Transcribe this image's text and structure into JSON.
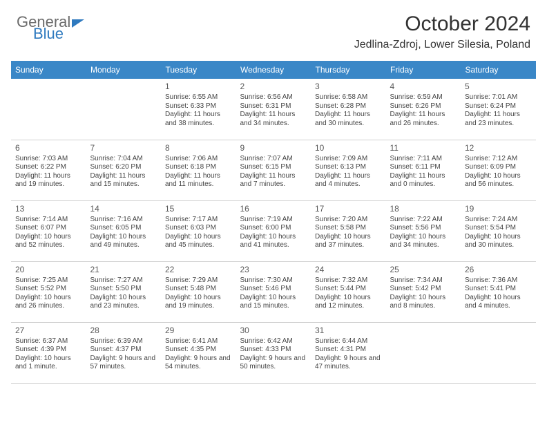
{
  "brand": {
    "word1": "General",
    "word2": "Blue",
    "word1_color": "#6b6b6b",
    "word2_color": "#2f7abf"
  },
  "title": "October 2024",
  "location": "Jedlina-Zdroj, Lower Silesia, Poland",
  "colors": {
    "header_bg": "#3a87c7",
    "header_text": "#ffffff",
    "row_divider": "#3a87c7",
    "cell_border": "#d0d0d0",
    "daynum_color": "#595959",
    "body_text": "#444444",
    "background": "#ffffff"
  },
  "day_headers": [
    "Sunday",
    "Monday",
    "Tuesday",
    "Wednesday",
    "Thursday",
    "Friday",
    "Saturday"
  ],
  "weeks": [
    [
      {
        "blank": true
      },
      {
        "blank": true
      },
      {
        "day": "1",
        "sunrise": "Sunrise: 6:55 AM",
        "sunset": "Sunset: 6:33 PM",
        "daylight": "Daylight: 11 hours and 38 minutes."
      },
      {
        "day": "2",
        "sunrise": "Sunrise: 6:56 AM",
        "sunset": "Sunset: 6:31 PM",
        "daylight": "Daylight: 11 hours and 34 minutes."
      },
      {
        "day": "3",
        "sunrise": "Sunrise: 6:58 AM",
        "sunset": "Sunset: 6:28 PM",
        "daylight": "Daylight: 11 hours and 30 minutes."
      },
      {
        "day": "4",
        "sunrise": "Sunrise: 6:59 AM",
        "sunset": "Sunset: 6:26 PM",
        "daylight": "Daylight: 11 hours and 26 minutes."
      },
      {
        "day": "5",
        "sunrise": "Sunrise: 7:01 AM",
        "sunset": "Sunset: 6:24 PM",
        "daylight": "Daylight: 11 hours and 23 minutes."
      }
    ],
    [
      {
        "day": "6",
        "sunrise": "Sunrise: 7:03 AM",
        "sunset": "Sunset: 6:22 PM",
        "daylight": "Daylight: 11 hours and 19 minutes."
      },
      {
        "day": "7",
        "sunrise": "Sunrise: 7:04 AM",
        "sunset": "Sunset: 6:20 PM",
        "daylight": "Daylight: 11 hours and 15 minutes."
      },
      {
        "day": "8",
        "sunrise": "Sunrise: 7:06 AM",
        "sunset": "Sunset: 6:18 PM",
        "daylight": "Daylight: 11 hours and 11 minutes."
      },
      {
        "day": "9",
        "sunrise": "Sunrise: 7:07 AM",
        "sunset": "Sunset: 6:15 PM",
        "daylight": "Daylight: 11 hours and 7 minutes."
      },
      {
        "day": "10",
        "sunrise": "Sunrise: 7:09 AM",
        "sunset": "Sunset: 6:13 PM",
        "daylight": "Daylight: 11 hours and 4 minutes."
      },
      {
        "day": "11",
        "sunrise": "Sunrise: 7:11 AM",
        "sunset": "Sunset: 6:11 PM",
        "daylight": "Daylight: 11 hours and 0 minutes."
      },
      {
        "day": "12",
        "sunrise": "Sunrise: 7:12 AM",
        "sunset": "Sunset: 6:09 PM",
        "daylight": "Daylight: 10 hours and 56 minutes."
      }
    ],
    [
      {
        "day": "13",
        "sunrise": "Sunrise: 7:14 AM",
        "sunset": "Sunset: 6:07 PM",
        "daylight": "Daylight: 10 hours and 52 minutes."
      },
      {
        "day": "14",
        "sunrise": "Sunrise: 7:16 AM",
        "sunset": "Sunset: 6:05 PM",
        "daylight": "Daylight: 10 hours and 49 minutes."
      },
      {
        "day": "15",
        "sunrise": "Sunrise: 7:17 AM",
        "sunset": "Sunset: 6:03 PM",
        "daylight": "Daylight: 10 hours and 45 minutes."
      },
      {
        "day": "16",
        "sunrise": "Sunrise: 7:19 AM",
        "sunset": "Sunset: 6:00 PM",
        "daylight": "Daylight: 10 hours and 41 minutes."
      },
      {
        "day": "17",
        "sunrise": "Sunrise: 7:20 AM",
        "sunset": "Sunset: 5:58 PM",
        "daylight": "Daylight: 10 hours and 37 minutes."
      },
      {
        "day": "18",
        "sunrise": "Sunrise: 7:22 AM",
        "sunset": "Sunset: 5:56 PM",
        "daylight": "Daylight: 10 hours and 34 minutes."
      },
      {
        "day": "19",
        "sunrise": "Sunrise: 7:24 AM",
        "sunset": "Sunset: 5:54 PM",
        "daylight": "Daylight: 10 hours and 30 minutes."
      }
    ],
    [
      {
        "day": "20",
        "sunrise": "Sunrise: 7:25 AM",
        "sunset": "Sunset: 5:52 PM",
        "daylight": "Daylight: 10 hours and 26 minutes."
      },
      {
        "day": "21",
        "sunrise": "Sunrise: 7:27 AM",
        "sunset": "Sunset: 5:50 PM",
        "daylight": "Daylight: 10 hours and 23 minutes."
      },
      {
        "day": "22",
        "sunrise": "Sunrise: 7:29 AM",
        "sunset": "Sunset: 5:48 PM",
        "daylight": "Daylight: 10 hours and 19 minutes."
      },
      {
        "day": "23",
        "sunrise": "Sunrise: 7:30 AM",
        "sunset": "Sunset: 5:46 PM",
        "daylight": "Daylight: 10 hours and 15 minutes."
      },
      {
        "day": "24",
        "sunrise": "Sunrise: 7:32 AM",
        "sunset": "Sunset: 5:44 PM",
        "daylight": "Daylight: 10 hours and 12 minutes."
      },
      {
        "day": "25",
        "sunrise": "Sunrise: 7:34 AM",
        "sunset": "Sunset: 5:42 PM",
        "daylight": "Daylight: 10 hours and 8 minutes."
      },
      {
        "day": "26",
        "sunrise": "Sunrise: 7:36 AM",
        "sunset": "Sunset: 5:41 PM",
        "daylight": "Daylight: 10 hours and 4 minutes."
      }
    ],
    [
      {
        "day": "27",
        "sunrise": "Sunrise: 6:37 AM",
        "sunset": "Sunset: 4:39 PM",
        "daylight": "Daylight: 10 hours and 1 minute."
      },
      {
        "day": "28",
        "sunrise": "Sunrise: 6:39 AM",
        "sunset": "Sunset: 4:37 PM",
        "daylight": "Daylight: 9 hours and 57 minutes."
      },
      {
        "day": "29",
        "sunrise": "Sunrise: 6:41 AM",
        "sunset": "Sunset: 4:35 PM",
        "daylight": "Daylight: 9 hours and 54 minutes."
      },
      {
        "day": "30",
        "sunrise": "Sunrise: 6:42 AM",
        "sunset": "Sunset: 4:33 PM",
        "daylight": "Daylight: 9 hours and 50 minutes."
      },
      {
        "day": "31",
        "sunrise": "Sunrise: 6:44 AM",
        "sunset": "Sunset: 4:31 PM",
        "daylight": "Daylight: 9 hours and 47 minutes."
      },
      {
        "blank": true
      },
      {
        "blank": true
      }
    ]
  ]
}
